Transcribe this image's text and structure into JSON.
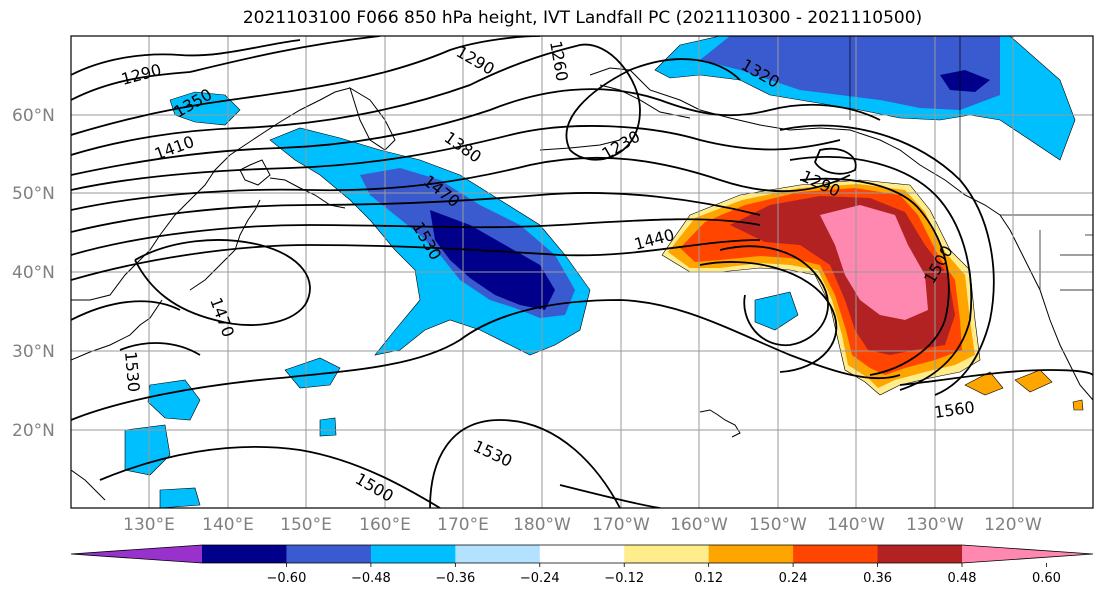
{
  "title": "2021103100 F066 850 hPa height, IVT Landfall PC (2021110300 - 2021110500)",
  "map": {
    "lat_ticks": [
      "60°N",
      "50°N",
      "40°N",
      "30°N",
      "20°N"
    ],
    "lon_ticks": [
      "130°E",
      "140°E",
      "150°E",
      "160°E",
      "170°E",
      "180°W",
      "170°W",
      "160°W",
      "150°W",
      "140°W",
      "130°W",
      "120°W"
    ],
    "contour_labels": [
      "1290",
      "1350",
      "1410",
      "1290",
      "1260",
      "1380",
      "1230",
      "1320",
      "1470",
      "1530",
      "1290",
      "1440",
      "1500",
      "1470",
      "1530",
      "1560",
      "1530",
      "1500"
    ],
    "colors": {
      "neg_060": "#00008b",
      "neg_048": "#3a5acf",
      "neg_036": "#00bfff",
      "neg_024": "#b2e2ff",
      "pos_024": "#ffa500",
      "pos_036": "#ff4500",
      "pos_048": "#b22222",
      "pos_060": "#ff88b0",
      "pos_012": "#ffec8b"
    }
  },
  "colorbar": {
    "ticks": [
      "−0.60",
      "−0.48",
      "−0.36",
      "−0.24",
      "−0.12",
      "0.12",
      "0.24",
      "0.36",
      "0.48",
      "0.60"
    ],
    "colors": [
      "#9932cc",
      "#00008b",
      "#3a5acf",
      "#00bfff",
      "#b2e2ff",
      "#ffffff",
      "#ffec8b",
      "#ffa500",
      "#ff4500",
      "#b22222",
      "#ff88b0"
    ]
  }
}
